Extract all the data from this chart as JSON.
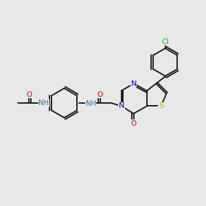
{
  "bg_color": "#e8e8e8",
  "bond_color": "#1a1a1a",
  "lw": 1.4,
  "atom_colors": {
    "N": "#0000cc",
    "O": "#dd0000",
    "S": "#bbbb00",
    "Cl": "#00bb00",
    "H": "#336688"
  },
  "figsize": [
    3.0,
    3.0
  ],
  "dpi": 100
}
